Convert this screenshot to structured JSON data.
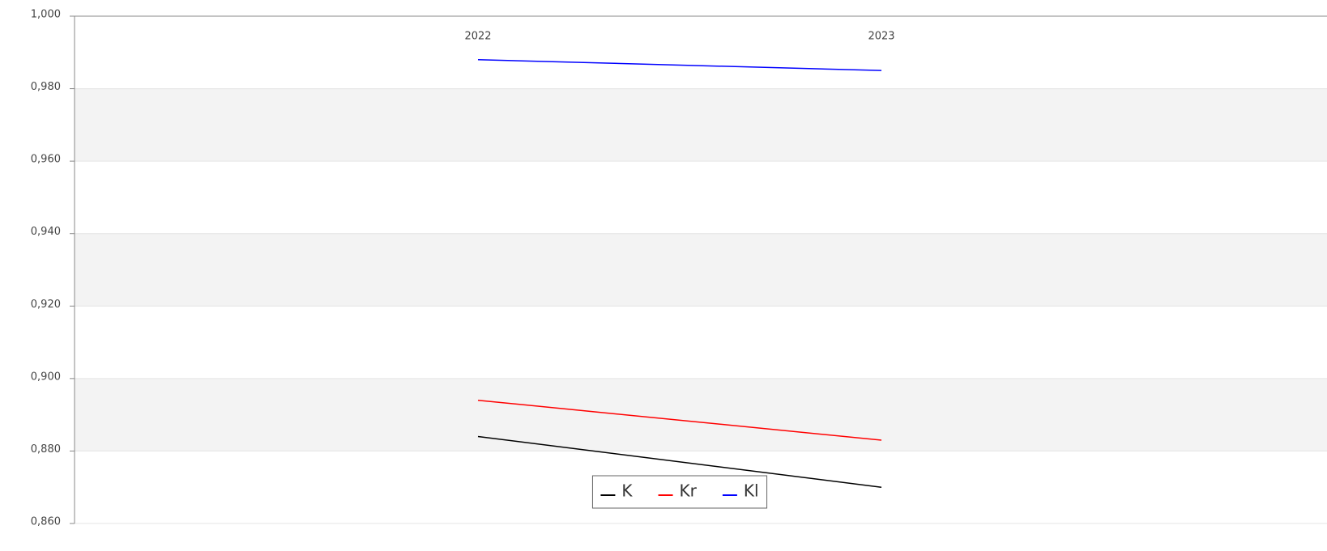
{
  "chart_data": {
    "type": "line",
    "categories": [
      "2022",
      "2023"
    ],
    "series": [
      {
        "name": "K",
        "color": "#000000",
        "values": [
          0.884,
          0.87
        ]
      },
      {
        "name": "Kr",
        "color": "#ff0000",
        "values": [
          0.894,
          0.883
        ]
      },
      {
        "name": "Kl",
        "color": "#0000ff",
        "values": [
          0.988,
          0.985
        ]
      }
    ],
    "ylim": [
      0.86,
      1.0
    ],
    "yticks": [
      {
        "value": 0.86,
        "label": "0,860"
      },
      {
        "value": 0.88,
        "label": "0,880"
      },
      {
        "value": 0.9,
        "label": "0,900"
      },
      {
        "value": 0.92,
        "label": "0,920"
      },
      {
        "value": 0.94,
        "label": "0,940"
      },
      {
        "value": 0.96,
        "label": "0,960"
      },
      {
        "value": 0.98,
        "label": "0,980"
      },
      {
        "value": 1.0,
        "label": "1,000"
      }
    ],
    "grid": true,
    "legend": "bottom"
  }
}
